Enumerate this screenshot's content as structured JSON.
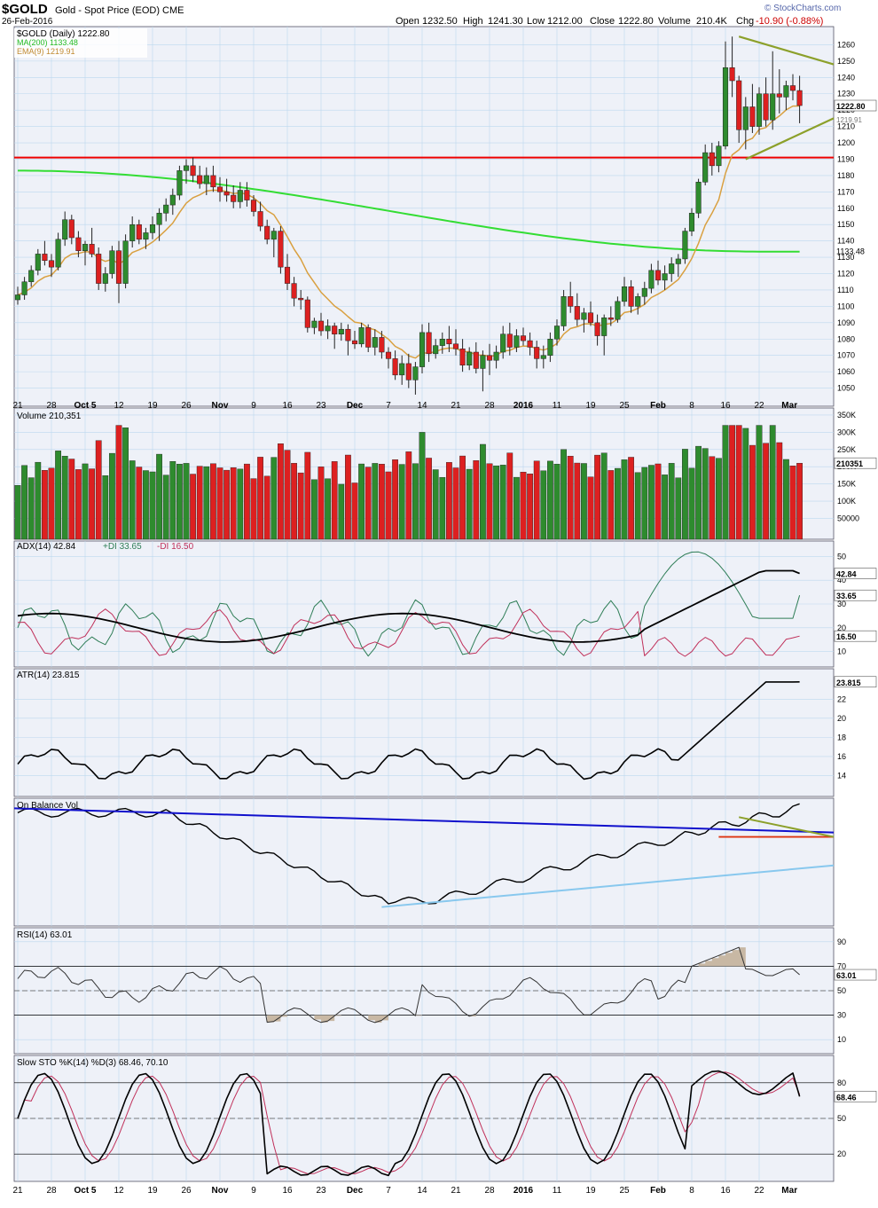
{
  "header": {
    "symbol_title": "$GOLD",
    "subtitle": "Gold - Spot Price (EOD)  CME",
    "date": "26-Feb-2016",
    "open_label": "Open",
    "open": "1232.50",
    "high_label": "High",
    "high": "1241.30",
    "low_label": "Low",
    "low": "1212.00",
    "close_label": "Close",
    "close": "1222.80",
    "volume_label": "Volume",
    "volume": "210.4K",
    "chg_label": "Chg",
    "chg": "-10.90 (-0.88%)",
    "watermark": "© StockCharts.com"
  },
  "colors": {
    "up": "#2e8b2e",
    "down": "#dd2020",
    "ma200": "#33dd33",
    "ema9": "#d9a040",
    "support": "#ee0000",
    "triangle": "#8ca02a",
    "obv_trend": "#1010cc",
    "obv_support": "#88c8ee",
    "plus_di": "#2e7d56",
    "minus_di": "#c0305a",
    "rsi_shade": "#c8b8a4",
    "stoch_d": "#c0305a",
    "panel_bg": "#eef1f8",
    "grid": "#bcd8ee"
  },
  "legends": {
    "price_title": "$GOLD (Daily) 1222.80",
    "ma200": "MA(200) 1133.48",
    "ema9": "EMA(9) 1219.91",
    "volume": "Volume 210,351",
    "adx": "ADX(14) 42.84",
    "plus_di": "+DI 33.65",
    "minus_di": "-DI 16.50",
    "atr": "ATR(14) 23.815",
    "obv": "On Balance Vol",
    "rsi": "RSI(14) 63.01",
    "sto": "Slow STO %K(14) %D(3) 68.46, 70.10"
  },
  "x_axis_labels": [
    "21",
    "28",
    "Oct 5",
    "12",
    "19",
    "26",
    "Nov",
    "9",
    "16",
    "23",
    "Dec",
    "7",
    "14",
    "21",
    "28",
    "2016",
    "11",
    "19",
    "25",
    "Feb",
    "8",
    "16",
    "22",
    "Mar"
  ],
  "chart_data": [
    {
      "id": "price",
      "type": "candlestick",
      "title": "$GOLD (Daily) 1222.80",
      "ylim": [
        1040,
        1270
      ],
      "y_ticks": [
        1050,
        1060,
        1070,
        1080,
        1090,
        1100,
        1110,
        1120,
        1130,
        1140,
        1150,
        1160,
        1170,
        1180,
        1190,
        1200,
        1210,
        1220,
        1230,
        1240,
        1250,
        1260
      ],
      "last_value_label": "1222.80",
      "ma200_last_label": "1133.48",
      "ema9_last_label": "1219.91",
      "support_level": 1191,
      "ohlc": [
        [
          1104,
          1112,
          1101,
          1107
        ],
        [
          1107,
          1118,
          1104,
          1115
        ],
        [
          1115,
          1125,
          1112,
          1122
        ],
        [
          1122,
          1135,
          1119,
          1132
        ],
        [
          1132,
          1140,
          1125,
          1128
        ],
        [
          1128,
          1132,
          1118,
          1124
        ],
        [
          1124,
          1145,
          1122,
          1141
        ],
        [
          1141,
          1158,
          1137,
          1153
        ],
        [
          1153,
          1156,
          1138,
          1142
        ],
        [
          1142,
          1146,
          1130,
          1134
        ],
        [
          1134,
          1140,
          1125,
          1138
        ],
        [
          1138,
          1148,
          1130,
          1132
        ],
        [
          1132,
          1136,
          1110,
          1114
        ],
        [
          1114,
          1124,
          1109,
          1120
        ],
        [
          1120,
          1137,
          1117,
          1134
        ],
        [
          1134,
          1140,
          1102,
          1114
        ],
        [
          1114,
          1144,
          1111,
          1140
        ],
        [
          1140,
          1155,
          1136,
          1150
        ],
        [
          1150,
          1153,
          1138,
          1141
        ],
        [
          1141,
          1148,
          1135,
          1145
        ],
        [
          1145,
          1155,
          1141,
          1150
        ],
        [
          1150,
          1160,
          1140,
          1157
        ],
        [
          1157,
          1166,
          1152,
          1162
        ],
        [
          1162,
          1172,
          1156,
          1168
        ],
        [
          1168,
          1186,
          1165,
          1183
        ],
        [
          1183,
          1190,
          1175,
          1186
        ],
        [
          1186,
          1191,
          1176,
          1180
        ],
        [
          1180,
          1186,
          1172,
          1175
        ],
        [
          1175,
          1185,
          1168,
          1180
        ],
        [
          1180,
          1186,
          1170,
          1173
        ],
        [
          1173,
          1179,
          1164,
          1170
        ],
        [
          1170,
          1178,
          1164,
          1168
        ],
        [
          1168,
          1174,
          1160,
          1164
        ],
        [
          1164,
          1176,
          1160,
          1171
        ],
        [
          1171,
          1176,
          1161,
          1165
        ],
        [
          1165,
          1168,
          1155,
          1158
        ],
        [
          1158,
          1164,
          1146,
          1149
        ],
        [
          1149,
          1153,
          1138,
          1141
        ],
        [
          1141,
          1148,
          1130,
          1146
        ],
        [
          1146,
          1149,
          1120,
          1124
        ],
        [
          1124,
          1132,
          1110,
          1114
        ],
        [
          1114,
          1118,
          1100,
          1105
        ],
        [
          1105,
          1110,
          1098,
          1104
        ],
        [
          1104,
          1106,
          1084,
          1087
        ],
        [
          1087,
          1093,
          1083,
          1091
        ],
        [
          1091,
          1096,
          1082,
          1085
        ],
        [
          1085,
          1092,
          1080,
          1088
        ],
        [
          1088,
          1090,
          1074,
          1083
        ],
        [
          1083,
          1090,
          1079,
          1086
        ],
        [
          1086,
          1089,
          1070,
          1079
        ],
        [
          1079,
          1085,
          1074,
          1077
        ],
        [
          1077,
          1090,
          1075,
          1087
        ],
        [
          1087,
          1089,
          1072,
          1075
        ],
        [
          1075,
          1086,
          1070,
          1081
        ],
        [
          1081,
          1085,
          1068,
          1072
        ],
        [
          1072,
          1075,
          1062,
          1068
        ],
        [
          1068,
          1073,
          1055,
          1058
        ],
        [
          1058,
          1070,
          1052,
          1065
        ],
        [
          1065,
          1071,
          1050,
          1055
        ],
        [
          1055,
          1066,
          1046,
          1063
        ],
        [
          1063,
          1089,
          1059,
          1084
        ],
        [
          1084,
          1090,
          1066,
          1071
        ],
        [
          1071,
          1080,
          1068,
          1076
        ],
        [
          1076,
          1084,
          1071,
          1080
        ],
        [
          1080,
          1088,
          1072,
          1077
        ],
        [
          1077,
          1086,
          1070,
          1074
        ],
        [
          1074,
          1080,
          1060,
          1064
        ],
        [
          1064,
          1075,
          1061,
          1072
        ],
        [
          1072,
          1078,
          1059,
          1062
        ],
        [
          1062,
          1073,
          1048,
          1070
        ],
        [
          1070,
          1077,
          1058,
          1067
        ],
        [
          1067,
          1076,
          1062,
          1072
        ],
        [
          1072,
          1088,
          1068,
          1083
        ],
        [
          1083,
          1090,
          1070,
          1075
        ],
        [
          1075,
          1086,
          1072,
          1082
        ],
        [
          1082,
          1087,
          1076,
          1079
        ],
        [
          1079,
          1084,
          1070,
          1075
        ],
        [
          1075,
          1079,
          1062,
          1068
        ],
        [
          1068,
          1076,
          1062,
          1070
        ],
        [
          1070,
          1084,
          1066,
          1080
        ],
        [
          1080,
          1092,
          1076,
          1088
        ],
        [
          1088,
          1110,
          1085,
          1106
        ],
        [
          1106,
          1115,
          1096,
          1100
        ],
        [
          1100,
          1108,
          1088,
          1092
        ],
        [
          1092,
          1099,
          1084,
          1096
        ],
        [
          1096,
          1103,
          1088,
          1090
        ],
        [
          1090,
          1095,
          1076,
          1082
        ],
        [
          1082,
          1095,
          1070,
          1093
        ],
        [
          1093,
          1100,
          1088,
          1092
        ],
        [
          1092,
          1106,
          1090,
          1103
        ],
        [
          1103,
          1118,
          1100,
          1112
        ],
        [
          1112,
          1116,
          1096,
          1100
        ],
        [
          1100,
          1108,
          1095,
          1106
        ],
        [
          1106,
          1115,
          1101,
          1111
        ],
        [
          1111,
          1126,
          1108,
          1122
        ],
        [
          1122,
          1128,
          1113,
          1116
        ],
        [
          1116,
          1125,
          1110,
          1120
        ],
        [
          1120,
          1130,
          1115,
          1126
        ],
        [
          1126,
          1132,
          1118,
          1129
        ],
        [
          1129,
          1148,
          1126,
          1146
        ],
        [
          1146,
          1160,
          1143,
          1157
        ],
        [
          1157,
          1178,
          1154,
          1176
        ],
        [
          1176,
          1199,
          1174,
          1194
        ],
        [
          1194,
          1200,
          1180,
          1186
        ],
        [
          1186,
          1201,
          1182,
          1198
        ],
        [
          1198,
          1262,
          1196,
          1246
        ],
        [
          1246,
          1265,
          1228,
          1238
        ],
        [
          1238,
          1241,
          1200,
          1208
        ],
        [
          1208,
          1228,
          1196,
          1222
        ],
        [
          1222,
          1236,
          1206,
          1210
        ],
        [
          1210,
          1234,
          1205,
          1230
        ],
        [
          1230,
          1240,
          1210,
          1214
        ],
        [
          1214,
          1256,
          1208,
          1230
        ],
        [
          1230,
          1245,
          1218,
          1228
        ],
        [
          1228,
          1238,
          1220,
          1235
        ],
        [
          1235,
          1242,
          1226,
          1232
        ],
        [
          1232,
          1241,
          1212,
          1222.8
        ]
      ],
      "ma200": {
        "start": 1183,
        "end": 1133.48
      },
      "triangle": {
        "upper_from": 1265,
        "upper_to": 1248,
        "lower_from": 1190,
        "lower_to": 1215
      }
    },
    {
      "id": "volume",
      "type": "bar",
      "title": "Volume 210,351",
      "ylim": [
        0,
        360000
      ],
      "y_tick_labels": [
        "50000",
        "100K",
        "150K",
        "200K",
        "250K",
        "300K",
        "350K"
      ],
      "last_value_label": "210351"
    },
    {
      "id": "adx",
      "type": "line",
      "title": "ADX(14) 42.84 +DI 33.65 -DI 16.50",
      "ylim": [
        5,
        55
      ],
      "y_ticks": [
        10,
        20,
        30,
        40,
        50
      ],
      "last_labels": [
        "42.84",
        "33.65",
        "16.50"
      ]
    },
    {
      "id": "atr",
      "type": "line",
      "title": "ATR(14) 23.815",
      "ylim": [
        12,
        25
      ],
      "y_ticks": [
        14,
        16,
        18,
        20,
        22
      ],
      "last_value_label": "23.815"
    },
    {
      "id": "obv",
      "type": "line",
      "title": "On Balance Vol"
    },
    {
      "id": "rsi",
      "type": "line",
      "title": "RSI(14) 63.01",
      "ylim": [
        0,
        100
      ],
      "y_ticks": [
        10,
        30,
        50,
        70,
        90
      ],
      "last_value_label": "63.01"
    },
    {
      "id": "sto",
      "type": "line",
      "title": "Slow STO %K(14) %D(3) 68.46, 70.10",
      "ylim": [
        0,
        100
      ],
      "y_ticks": [
        20,
        50,
        80
      ],
      "last_value_label": "68.46"
    }
  ]
}
